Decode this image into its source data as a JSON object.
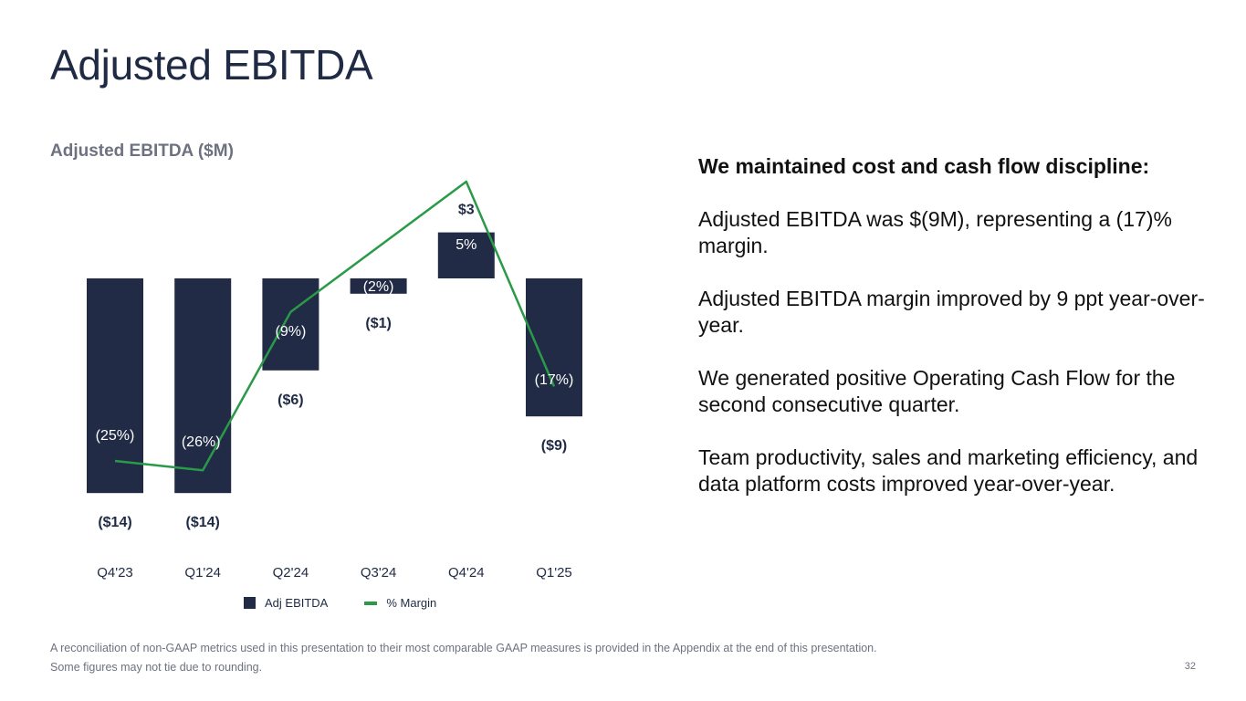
{
  "title": "Adjusted EBITDA",
  "chart_data": {
    "type": "bar",
    "subtitle": "Adjusted EBITDA ($M)",
    "categories": [
      "Q4'23",
      "Q1'24",
      "Q2'24",
      "Q3'24",
      "Q4'24",
      "Q1'25"
    ],
    "series": [
      {
        "name": "Adj EBITDA",
        "type": "bar",
        "values": [
          -14,
          -14,
          -6,
          -1,
          3,
          -9
        ],
        "labels": [
          "($14)",
          "($14)",
          "($6)",
          "($1)",
          "$3",
          "($9)"
        ],
        "color": "#212b45"
      },
      {
        "name": "% Margin",
        "type": "line",
        "values": [
          -25,
          -26,
          -9,
          -2,
          5,
          -17
        ],
        "labels": [
          "(25%)",
          "(26%)",
          "(9%)",
          "(2%)",
          "5%",
          "(17%)"
        ],
        "color": "#2a9a48"
      }
    ],
    "legend": [
      "Adj EBITDA",
      "% Margin"
    ],
    "legend_position": "bottom"
  },
  "commentary": {
    "headline": "We maintained cost and cash flow discipline:",
    "paragraphs": [
      "Adjusted EBITDA was $(9M), representing a (17)% margin.",
      "Adjusted EBITDA margin improved by 9 ppt year-over-year.",
      "We generated positive Operating Cash Flow for the second consecutive quarter.",
      "Team productivity, sales and marketing efficiency, and data platform costs improved year-over-year."
    ]
  },
  "footer": {
    "note1": "A reconciliation of non-GAAP metrics used in this presentation to their most comparable GAAP measures is provided in the Appendix at the end of this presentation.",
    "note2": "Some figures may not tie due to rounding.",
    "page": "32"
  }
}
